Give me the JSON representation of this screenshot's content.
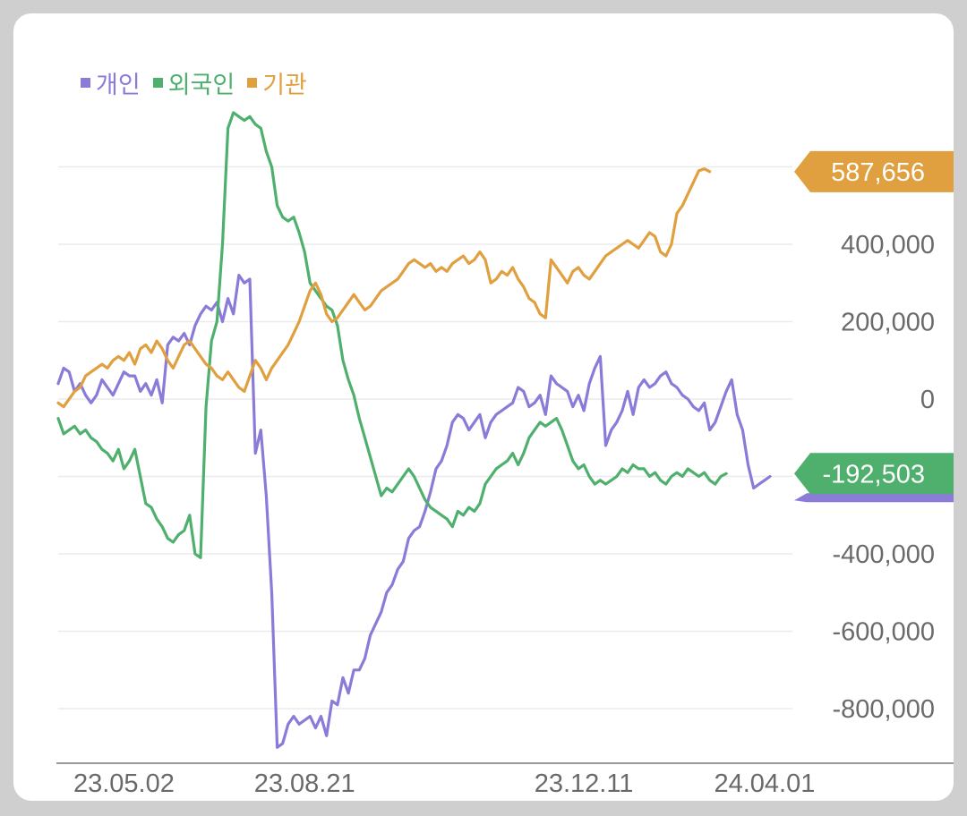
{
  "chart_data": {
    "type": "line",
    "xlabel": "",
    "ylabel": "",
    "ylim": [
      -1000000,
      700000
    ],
    "y_ticks": [
      {
        "value": 400000,
        "label": "400,000"
      },
      {
        "value": 200000,
        "label": "200,000"
      },
      {
        "value": 0,
        "label": "0"
      },
      {
        "value": -200000,
        "label": ""
      },
      {
        "value": -400000,
        "label": "-400,000"
      },
      {
        "value": -600000,
        "label": "-600,000"
      },
      {
        "value": -800000,
        "label": "-800,000"
      },
      {
        "value": 600000,
        "label": ""
      }
    ],
    "x_ticks": [
      {
        "index": 12,
        "label": "23.05.02"
      },
      {
        "index": 45,
        "label": "23.08.21"
      },
      {
        "index": 96,
        "label": "23.12.11"
      },
      {
        "index": 129,
        "label": "24.04.01"
      }
    ],
    "grid": true,
    "legend_position": "top-left",
    "series": [
      {
        "name": "개인",
        "color": "#8b7bd8",
        "values": [
          40000,
          80000,
          70000,
          20000,
          40000,
          10000,
          -10000,
          10000,
          50000,
          30000,
          10000,
          40000,
          70000,
          60000,
          60000,
          20000,
          40000,
          10000,
          50000,
          -10000,
          140000,
          160000,
          150000,
          170000,
          140000,
          190000,
          220000,
          240000,
          230000,
          250000,
          200000,
          260000,
          220000,
          320000,
          300000,
          310000,
          -140000,
          -80000,
          -250000,
          -500000,
          -900000,
          -890000,
          -840000,
          -820000,
          -840000,
          -830000,
          -820000,
          -850000,
          -820000,
          -870000,
          -780000,
          -790000,
          -720000,
          -760000,
          -700000,
          -700000,
          -670000,
          -610000,
          -580000,
          -550000,
          -500000,
          -480000,
          -440000,
          -420000,
          -360000,
          -340000,
          -330000,
          -290000,
          -240000,
          -180000,
          -160000,
          -120000,
          -60000,
          -40000,
          -50000,
          -80000,
          -60000,
          -40000,
          -100000,
          -60000,
          -40000,
          -30000,
          -20000,
          -10000,
          30000,
          20000,
          -20000,
          -10000,
          10000,
          -40000,
          60000,
          40000,
          30000,
          20000,
          -20000,
          10000,
          -30000,
          40000,
          80000,
          110000,
          -120000,
          -80000,
          -60000,
          -30000,
          20000,
          -40000,
          30000,
          50000,
          30000,
          40000,
          60000,
          70000,
          40000,
          30000,
          10000,
          0,
          -20000,
          -30000,
          -10000,
          -80000,
          -60000,
          -20000,
          20000,
          50000,
          -40000,
          -80000,
          -170000,
          -230000,
          -220000,
          -210000,
          -200000
        ]
      },
      {
        "name": "외국인",
        "color": "#4fb06e",
        "values": [
          -50000,
          -90000,
          -80000,
          -70000,
          -90000,
          -80000,
          -100000,
          -110000,
          -130000,
          -140000,
          -160000,
          -130000,
          -180000,
          -160000,
          -130000,
          -200000,
          -270000,
          -280000,
          -310000,
          -330000,
          -360000,
          -370000,
          -350000,
          -340000,
          -300000,
          -400000,
          -410000,
          -20000,
          150000,
          200000,
          400000,
          700000,
          740000,
          730000,
          720000,
          730000,
          710000,
          700000,
          640000,
          600000,
          500000,
          470000,
          460000,
          470000,
          430000,
          380000,
          300000,
          280000,
          260000,
          240000,
          230000,
          190000,
          100000,
          50000,
          10000,
          -50000,
          -100000,
          -150000,
          -200000,
          -250000,
          -230000,
          -240000,
          -220000,
          -200000,
          -180000,
          -200000,
          -230000,
          -260000,
          -280000,
          -290000,
          -300000,
          -310000,
          -330000,
          -290000,
          -300000,
          -280000,
          -290000,
          -270000,
          -220000,
          -200000,
          -180000,
          -170000,
          -160000,
          -140000,
          -170000,
          -140000,
          -100000,
          -80000,
          -60000,
          -70000,
          -60000,
          -50000,
          -80000,
          -120000,
          -160000,
          -180000,
          -170000,
          -200000,
          -220000,
          -210000,
          -220000,
          -210000,
          -200000,
          -180000,
          -190000,
          -170000,
          -180000,
          -180000,
          -200000,
          -190000,
          -210000,
          -220000,
          -200000,
          -190000,
          -200000,
          -180000,
          -190000,
          -200000,
          -190000,
          -210000,
          -220000,
          -200000,
          -192503
        ]
      },
      {
        "name": "기관",
        "color": "#e0a040",
        "values": [
          -10000,
          -20000,
          0,
          20000,
          30000,
          60000,
          70000,
          80000,
          90000,
          80000,
          100000,
          110000,
          100000,
          120000,
          90000,
          130000,
          140000,
          120000,
          150000,
          130000,
          100000,
          80000,
          110000,
          140000,
          150000,
          130000,
          110000,
          90000,
          80000,
          60000,
          50000,
          70000,
          50000,
          30000,
          20000,
          60000,
          100000,
          80000,
          50000,
          80000,
          100000,
          120000,
          140000,
          170000,
          200000,
          240000,
          280000,
          300000,
          270000,
          220000,
          200000,
          210000,
          230000,
          250000,
          270000,
          250000,
          230000,
          240000,
          260000,
          280000,
          290000,
          300000,
          310000,
          330000,
          350000,
          360000,
          350000,
          340000,
          350000,
          330000,
          340000,
          330000,
          350000,
          360000,
          370000,
          350000,
          360000,
          380000,
          360000,
          300000,
          310000,
          330000,
          320000,
          340000,
          310000,
          290000,
          260000,
          250000,
          220000,
          210000,
          360000,
          340000,
          320000,
          300000,
          330000,
          340000,
          320000,
          310000,
          330000,
          350000,
          370000,
          380000,
          390000,
          400000,
          410000,
          400000,
          390000,
          410000,
          430000,
          420000,
          380000,
          370000,
          400000,
          480000,
          500000,
          530000,
          560000,
          590000,
          595000,
          587656
        ]
      }
    ],
    "end_labels": {
      "기관": "587,656",
      "외국인": "-192,503"
    }
  }
}
